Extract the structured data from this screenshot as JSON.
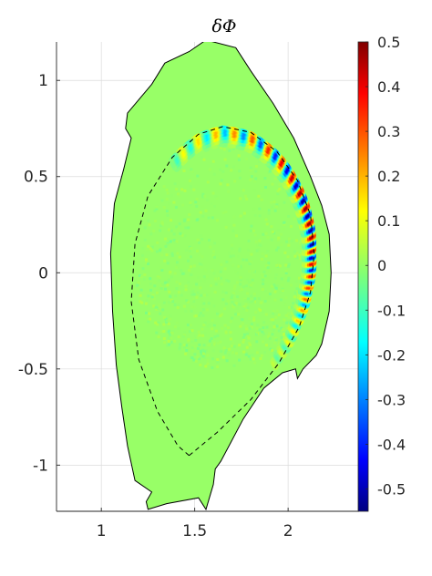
{
  "chart_data": {
    "type": "heatmap",
    "title": "δΦ",
    "xlabel": "",
    "ylabel": "",
    "xlim": [
      0.76,
      2.38
    ],
    "ylim": [
      -1.24,
      1.2
    ],
    "x_ticks": [
      1,
      1.5,
      2
    ],
    "x_tick_labels": [
      "1",
      "1.5",
      "2"
    ],
    "y_ticks": [
      1,
      0.5,
      0,
      -0.5,
      -1
    ],
    "y_tick_labels": [
      "1",
      "0.5",
      "0",
      "-0.5",
      "-1"
    ],
    "grid": true,
    "colorbar": {
      "colormap": "jet",
      "range": [
        -0.55,
        0.5
      ],
      "ticks": [
        0.5,
        0.4,
        0.3,
        0.2,
        0.1,
        0,
        -0.1,
        -0.2,
        -0.3,
        -0.4,
        -0.5
      ],
      "tick_labels": [
        "0.5",
        "0.4",
        "0.3",
        "0.2",
        "0.1",
        "0",
        "-0.1",
        "-0.2",
        "-0.3",
        "-0.4",
        "-0.5"
      ]
    },
    "background_value": 0,
    "wall_boundary": [
      [
        1.18,
        -1.08
      ],
      [
        1.27,
        -1.14
      ],
      [
        1.24,
        -1.19
      ],
      [
        1.25,
        -1.23
      ],
      [
        1.35,
        -1.2
      ],
      [
        1.52,
        -1.17
      ],
      [
        1.56,
        -1.23
      ],
      [
        1.6,
        -1.1
      ],
      [
        1.61,
        -1.02
      ],
      [
        1.64,
        -0.98
      ],
      [
        1.76,
        -0.76
      ],
      [
        1.87,
        -0.6
      ],
      [
        1.97,
        -0.52
      ],
      [
        2.04,
        -0.5
      ],
      [
        2.05,
        -0.55
      ],
      [
        2.08,
        -0.5
      ],
      [
        2.15,
        -0.43
      ],
      [
        2.18,
        -0.37
      ],
      [
        2.22,
        -0.2
      ],
      [
        2.23,
        0
      ],
      [
        2.22,
        0.2
      ],
      [
        2.18,
        0.35
      ],
      [
        2.12,
        0.5
      ],
      [
        2.03,
        0.7
      ],
      [
        1.92,
        0.88
      ],
      [
        1.8,
        1.05
      ],
      [
        1.72,
        1.17
      ],
      [
        1.56,
        1.21
      ],
      [
        1.47,
        1.15
      ],
      [
        1.34,
        1.09
      ],
      [
        1.27,
        0.98
      ],
      [
        1.14,
        0.83
      ],
      [
        1.13,
        0.75
      ],
      [
        1.16,
        0.7
      ],
      [
        1.12,
        0.54
      ],
      [
        1.07,
        0.36
      ],
      [
        1.05,
        0.1
      ],
      [
        1.06,
        -0.2
      ],
      [
        1.08,
        -0.48
      ],
      [
        1.11,
        -0.7
      ],
      [
        1.14,
        -0.9
      ]
    ],
    "separatrix": [
      [
        1.47,
        -0.95
      ],
      [
        1.62,
        -0.83
      ],
      [
        1.8,
        -0.66
      ],
      [
        1.95,
        -0.47
      ],
      [
        2.06,
        -0.28
      ],
      [
        2.12,
        -0.1
      ],
      [
        2.14,
        0.1
      ],
      [
        2.12,
        0.3
      ],
      [
        2.05,
        0.48
      ],
      [
        1.94,
        0.63
      ],
      [
        1.8,
        0.73
      ],
      [
        1.65,
        0.76
      ],
      [
        1.52,
        0.72
      ],
      [
        1.38,
        0.6
      ],
      [
        1.25,
        0.4
      ],
      [
        1.18,
        0.15
      ],
      [
        1.16,
        -0.15
      ],
      [
        1.2,
        -0.45
      ],
      [
        1.3,
        -0.72
      ],
      [
        1.41,
        -0.9
      ]
    ],
    "mode_structure": {
      "description_values": "perturbation peaked along outer-midplane edge of separatrix",
      "peak_amplitude": 0.5,
      "trough_amplitude": -0.55,
      "poloidal_wavelength_points": 46,
      "radial_width": 0.05,
      "poloidal_extent_deg": [
        -60,
        115
      ],
      "interior_noise_amplitude": 0.04
    }
  }
}
